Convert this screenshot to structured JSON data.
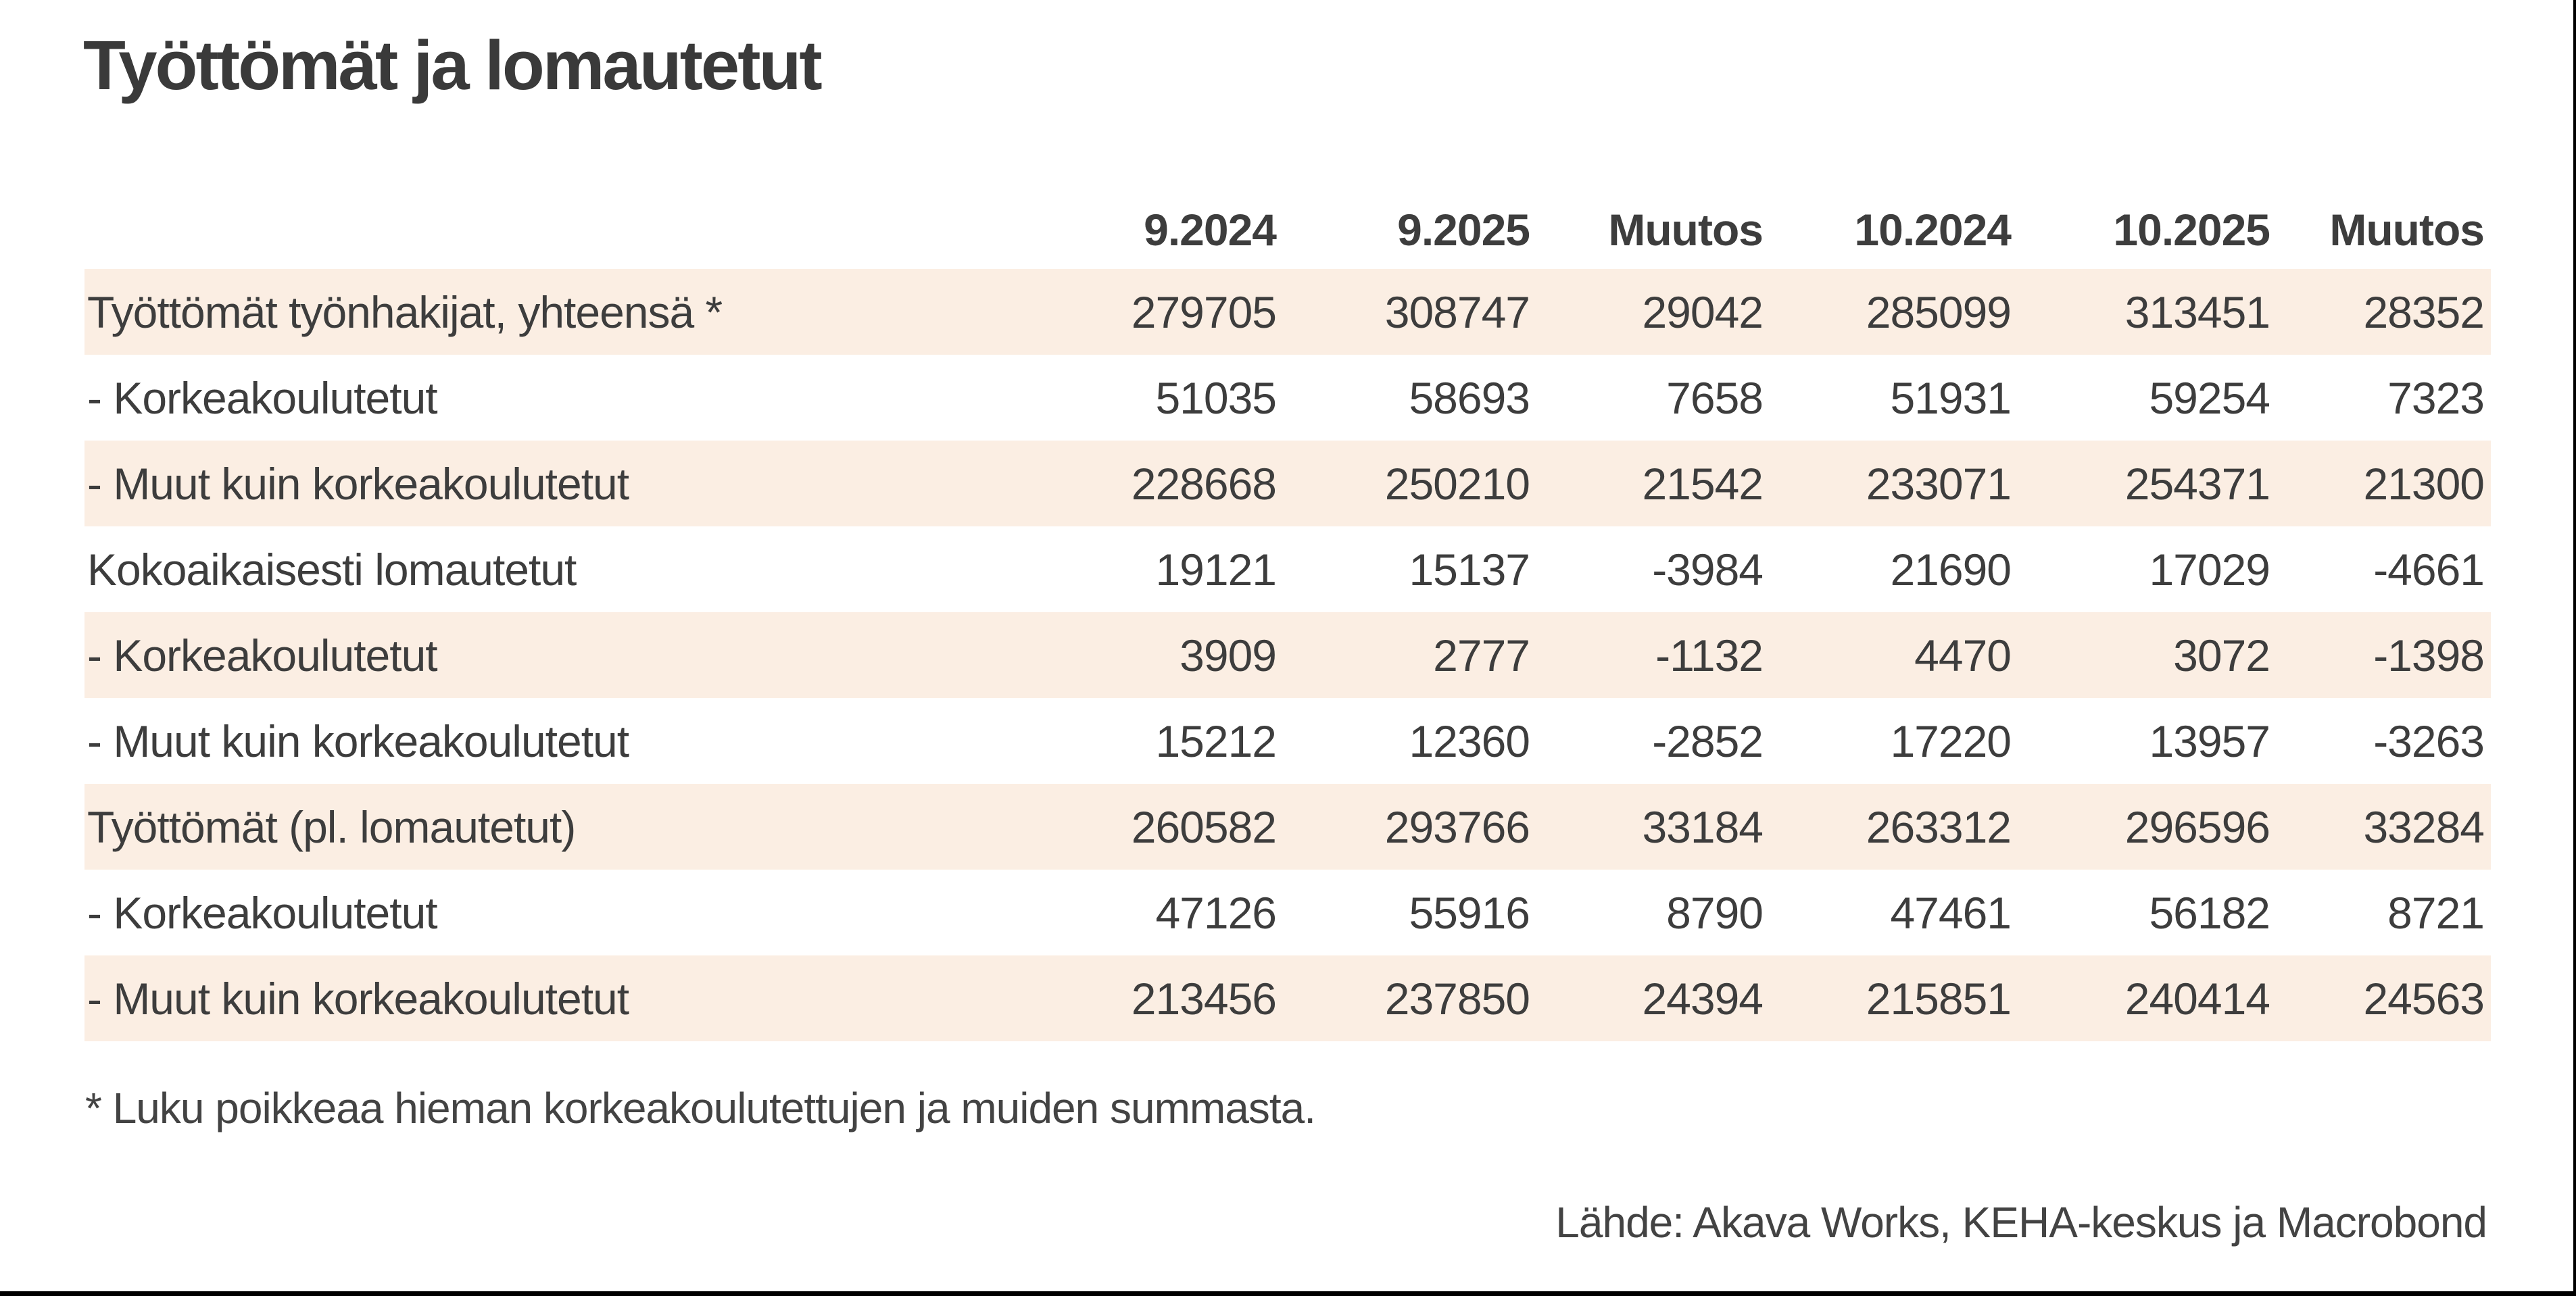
{
  "chart_data": {
    "type": "table",
    "title": "Työttömät ja lomautetut",
    "columns": [
      "",
      "9.2024",
      "9.2025",
      "Muutos",
      "10.2024",
      "10.2025",
      "Muutos"
    ],
    "rows": [
      {
        "label": "Työttömät työnhakijat, yhteensä *",
        "values": [
          279705,
          308747,
          29042,
          285099,
          313451,
          28352
        ],
        "shaded": true
      },
      {
        "label": "- Korkeakoulutetut",
        "values": [
          51035,
          58693,
          7658,
          51931,
          59254,
          7323
        ],
        "shaded": false
      },
      {
        "label": "- Muut kuin korkeakoulutetut",
        "values": [
          228668,
          250210,
          21542,
          233071,
          254371,
          21300
        ],
        "shaded": true
      },
      {
        "label": "Kokoaikaisesti lomautetut",
        "values": [
          19121,
          15137,
          -3984,
          21690,
          17029,
          -4661
        ],
        "shaded": false
      },
      {
        "label": "- Korkeakoulutetut",
        "values": [
          3909,
          2777,
          -1132,
          4470,
          3072,
          -1398
        ],
        "shaded": true
      },
      {
        "label": "- Muut kuin korkeakoulutetut",
        "values": [
          15212,
          12360,
          -2852,
          17220,
          13957,
          -3263
        ],
        "shaded": false
      },
      {
        "label": "Työttömät (pl. lomautetut)",
        "values": [
          260582,
          293766,
          33184,
          263312,
          296596,
          33284
        ],
        "shaded": true
      },
      {
        "label": "- Korkeakoulutetut",
        "values": [
          47126,
          55916,
          8790,
          47461,
          56182,
          8721
        ],
        "shaded": false
      },
      {
        "label": "- Muut kuin korkeakoulutetut",
        "values": [
          213456,
          237850,
          24394,
          215851,
          240414,
          24563
        ],
        "shaded": true
      }
    ],
    "footnote": "* Luku poikkeaa hieman korkeakoulutettujen ja muiden summasta.",
    "source": "Lähde: Akava Works, KEHA-keskus ja Macrobond",
    "legend_position": "none",
    "grid": false
  },
  "colors": {
    "row_band": "#fbeee3",
    "text": "#3d3d3d",
    "frame_border": "#000000",
    "background": "#ffffff"
  }
}
